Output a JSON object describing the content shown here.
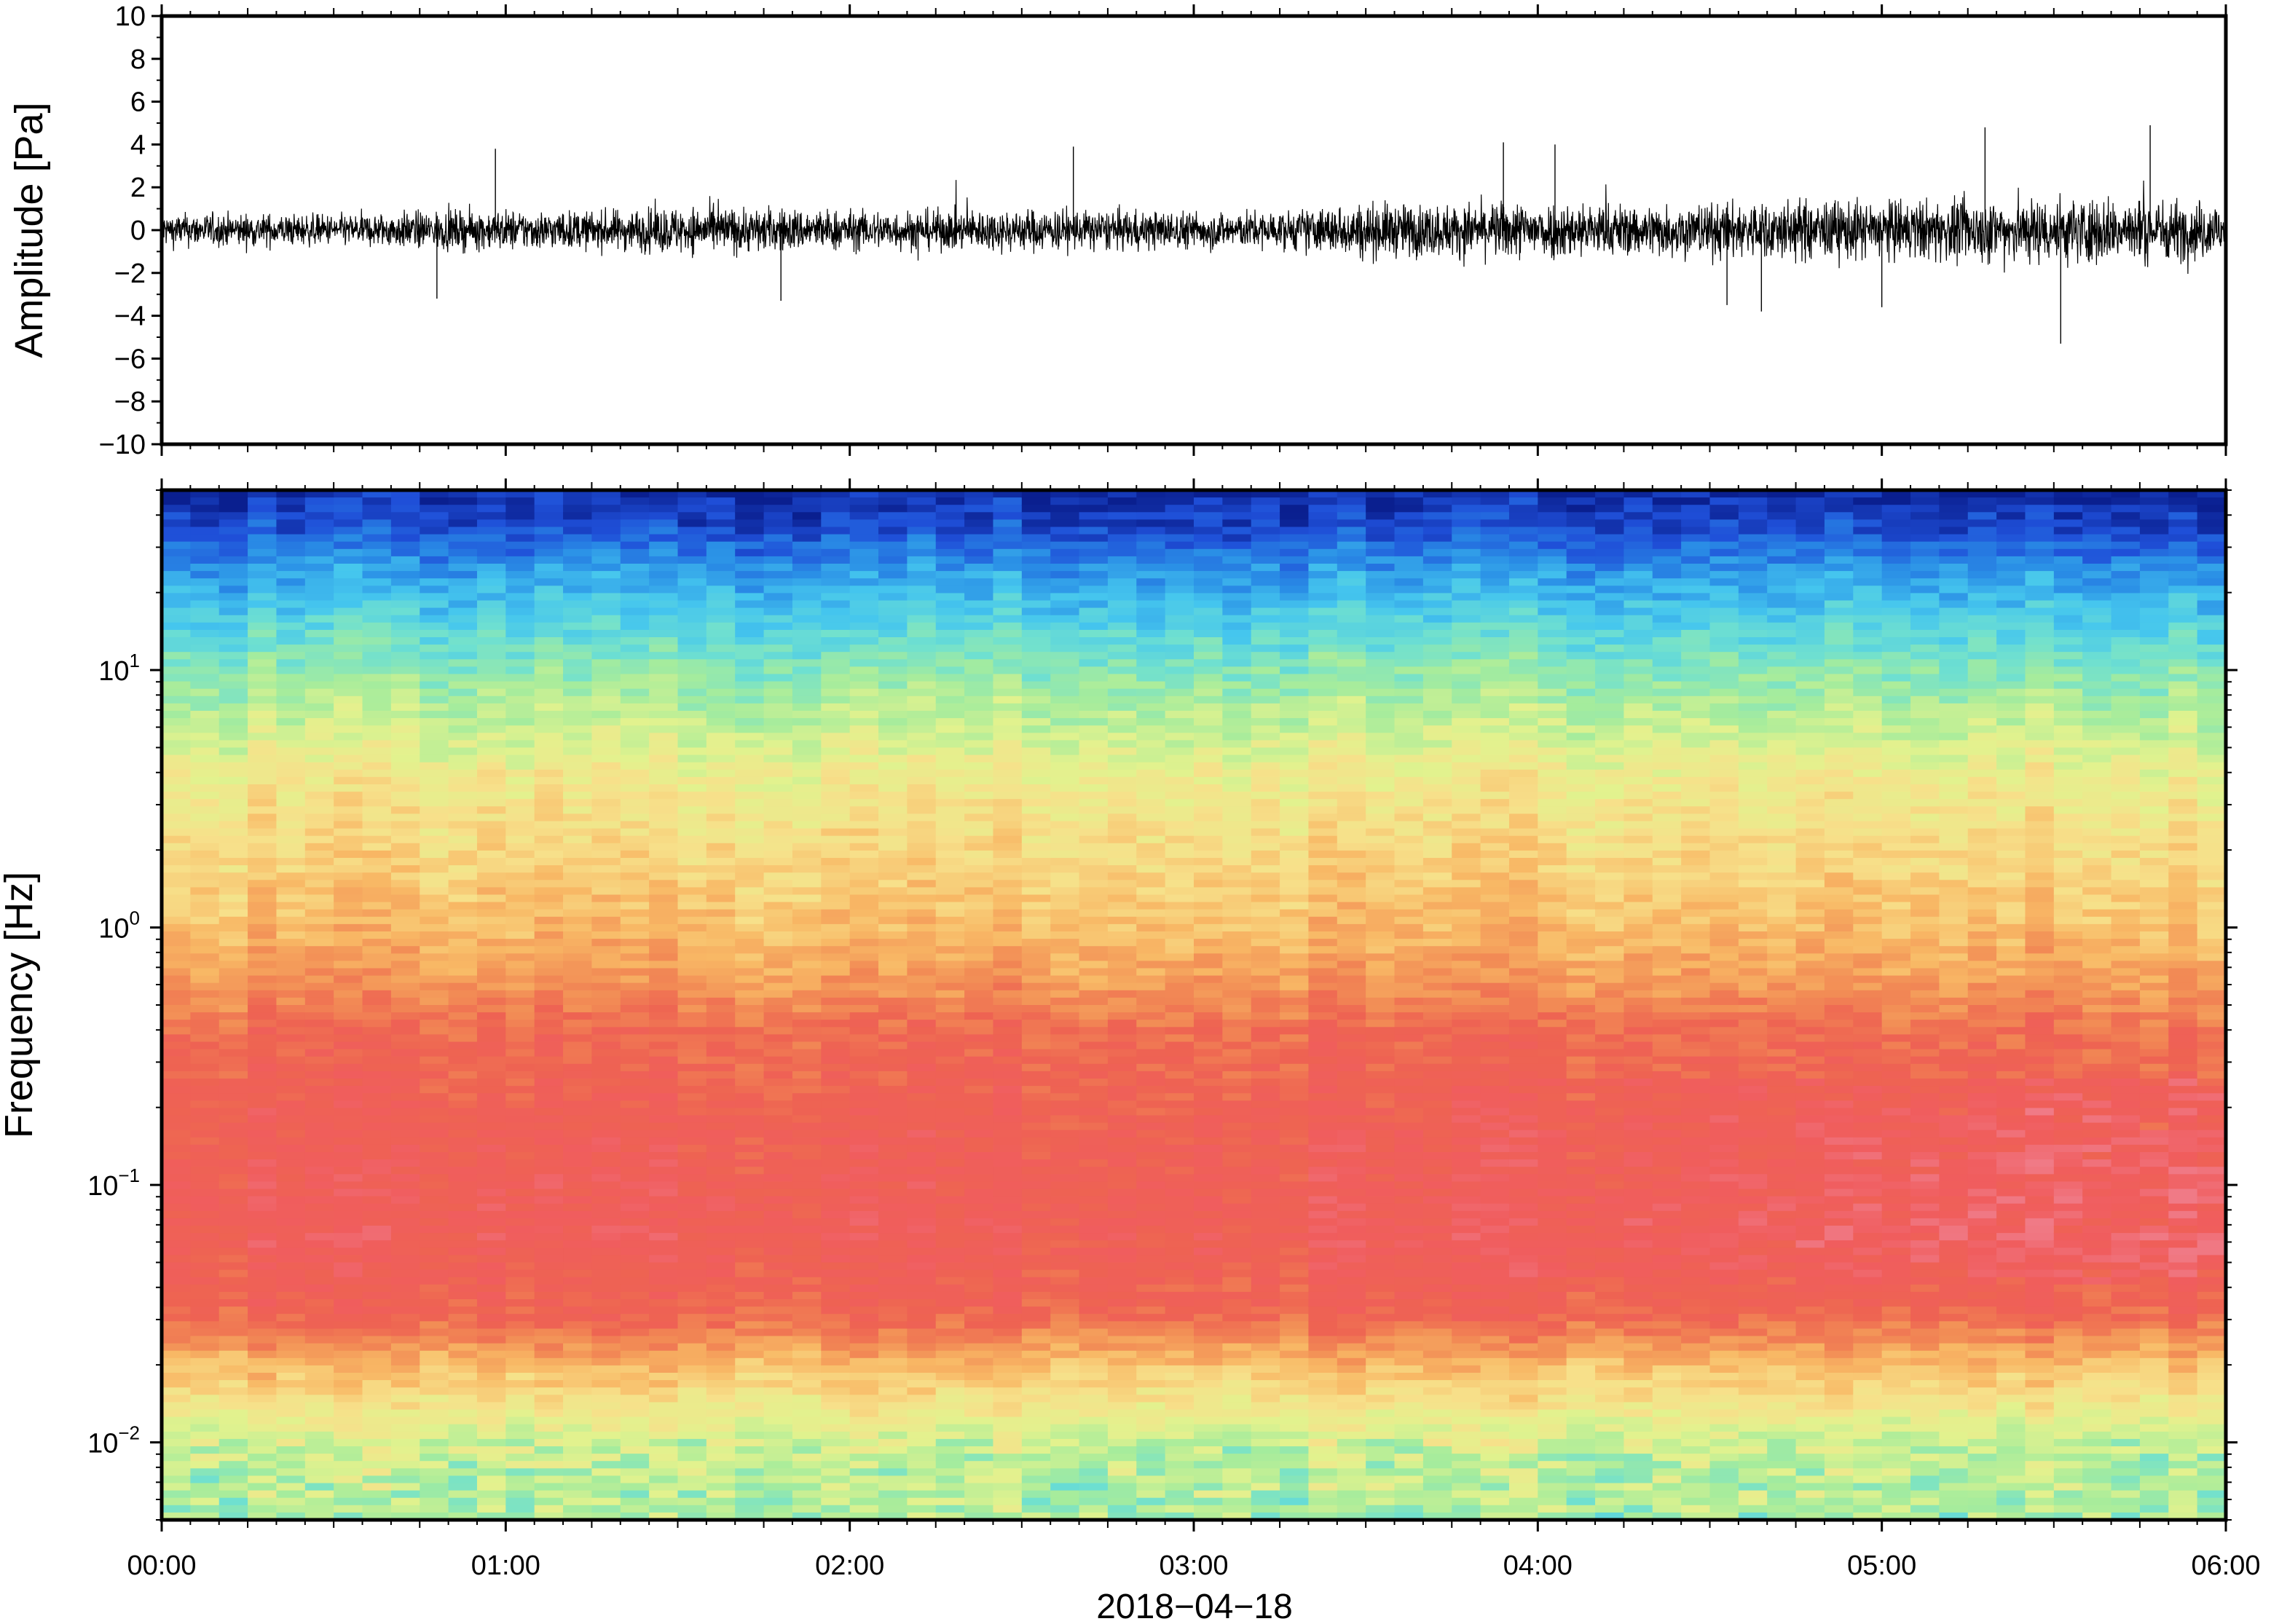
{
  "chart_data": [
    {
      "type": "line",
      "ylabel": "Amplitude [Pa]",
      "ylim": [
        -10,
        10
      ],
      "yticks": [
        10,
        8,
        6,
        4,
        2,
        0,
        -2,
        -4,
        -6,
        -8,
        -10
      ],
      "ytick_labels": [
        "10",
        "8",
        "6",
        "4",
        "2",
        "0",
        "−2",
        "−4",
        "−6",
        "−8",
        "−10"
      ],
      "xlim_hours": [
        0,
        6
      ],
      "grid": false,
      "series": [
        {
          "x_hours": [
            0,
            0.25,
            0.5,
            0.75,
            1,
            1.25,
            1.5,
            1.75,
            2,
            2.25,
            2.5,
            2.75,
            3,
            3.25,
            3.5,
            3.75,
            4,
            4.25,
            4.5,
            4.75,
            5,
            5.25,
            5.5,
            5.75,
            6
          ],
          "envelope_pa": [
            1.4,
            1.4,
            1.3,
            1.6,
            1.7,
            1.6,
            2.0,
            1.9,
            1.7,
            1.7,
            1.8,
            1.7,
            1.6,
            1.6,
            2.3,
            2.2,
            2.5,
            2.2,
            2.3,
            2.6,
            2.5,
            2.6,
            2.9,
            2.7,
            2.4
          ],
          "spikes_pa": [
            {
              "t": 0.97,
              "v": 3.8
            },
            {
              "t": 2.65,
              "v": 3.9
            },
            {
              "t": 3.9,
              "v": 4.1
            },
            {
              "t": 4.05,
              "v": 4.0
            },
            {
              "t": 5.3,
              "v": 4.8
            },
            {
              "t": 5.78,
              "v": 4.9
            },
            {
              "t": 5.52,
              "v": -5.3
            },
            {
              "t": 4.65,
              "v": -3.8
            },
            {
              "t": 0.8,
              "v": -3.2
            },
            {
              "t": 1.8,
              "v": -3.3
            },
            {
              "t": 5.0,
              "v": -3.6
            },
            {
              "t": 4.55,
              "v": -3.5
            }
          ]
        }
      ]
    },
    {
      "type": "heatmap",
      "ylabel": "Frequency [Hz]",
      "yscale": "log",
      "ylim": [
        0.005,
        50
      ],
      "yticks": [
        0.01,
        0.1,
        1,
        10
      ],
      "ytick_labels": [
        {
          "base": "10",
          "exp": "−2"
        },
        {
          "base": "10",
          "exp": "−1"
        },
        {
          "base": "10",
          "exp": "0"
        },
        {
          "base": "10",
          "exp": "1"
        }
      ],
      "xlim_hours": [
        0,
        6
      ],
      "colormap": [
        "#0a1f8f",
        "#1f4fd8",
        "#2a8fe6",
        "#45c6ee",
        "#6fe0d0",
        "#a6ec9c",
        "#e2f28e",
        "#f7e08a",
        "#f8b865",
        "#f28c55",
        "#ee6352",
        "#f05d5e",
        "#f07a86"
      ],
      "time_bins": 72,
      "log_freq_bins": 140
    }
  ],
  "x_axis": {
    "tick_labels": [
      "00:00",
      "01:00",
      "02:00",
      "03:00",
      "04:00",
      "05:00",
      "06:00"
    ],
    "date_label": "2018−04−18"
  }
}
